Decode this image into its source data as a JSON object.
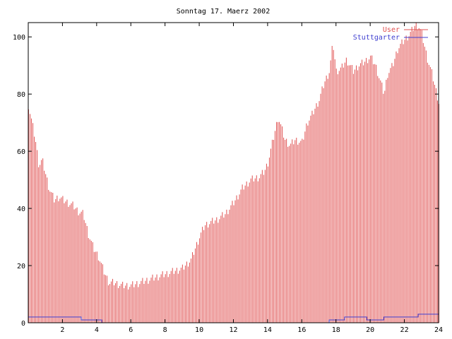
{
  "chart_data": {
    "type": "bar",
    "title": "Sonntag 17. Maerz 2002",
    "xlabel": "",
    "ylabel": "",
    "xlim": [
      0,
      24
    ],
    "ylim": [
      0,
      105
    ],
    "x_ticks": [
      2,
      4,
      6,
      8,
      10,
      12,
      14,
      16,
      18,
      20,
      22,
      24
    ],
    "y_ticks": [
      0,
      20,
      40,
      60,
      80,
      100
    ],
    "grid": false,
    "legend": "top-right",
    "colors": {
      "user": "#e05050",
      "stuttgarter": "#4040d0"
    },
    "series": [
      {
        "name": "User",
        "kind": "impulses",
        "step_hours": 0.0833,
        "anchors": [
          [
            0.0,
            76
          ],
          [
            0.2,
            70
          ],
          [
            0.4,
            64
          ],
          [
            0.6,
            55
          ],
          [
            0.8,
            57
          ],
          [
            1.0,
            52
          ],
          [
            1.2,
            47
          ],
          [
            1.5,
            43
          ],
          [
            1.8,
            44
          ],
          [
            2.0,
            43
          ],
          [
            2.3,
            42
          ],
          [
            2.6,
            41
          ],
          [
            2.9,
            39
          ],
          [
            3.2,
            38
          ],
          [
            3.5,
            31
          ],
          [
            3.8,
            26
          ],
          [
            4.1,
            23
          ],
          [
            4.4,
            18
          ],
          [
            4.7,
            14
          ],
          [
            5.0,
            14
          ],
          [
            5.5,
            13
          ],
          [
            6.0,
            13
          ],
          [
            6.5,
            14
          ],
          [
            7.0,
            15
          ],
          [
            7.5,
            16
          ],
          [
            8.0,
            17
          ],
          [
            8.5,
            18
          ],
          [
            9.0,
            19
          ],
          [
            9.5,
            22
          ],
          [
            10.0,
            30
          ],
          [
            10.3,
            34
          ],
          [
            10.6,
            35
          ],
          [
            11.0,
            36
          ],
          [
            11.5,
            38
          ],
          [
            12.0,
            42
          ],
          [
            12.5,
            47
          ],
          [
            13.0,
            50
          ],
          [
            13.5,
            51
          ],
          [
            13.8,
            53
          ],
          [
            14.0,
            56
          ],
          [
            14.3,
            64
          ],
          [
            14.6,
            72
          ],
          [
            14.8,
            68
          ],
          [
            15.0,
            64
          ],
          [
            15.3,
            62
          ],
          [
            15.6,
            64
          ],
          [
            16.0,
            63
          ],
          [
            16.3,
            70
          ],
          [
            16.6,
            73
          ],
          [
            17.0,
            78
          ],
          [
            17.3,
            84
          ],
          [
            17.6,
            88
          ],
          [
            17.8,
            98
          ],
          [
            18.0,
            88
          ],
          [
            18.3,
            89
          ],
          [
            18.6,
            92
          ],
          [
            19.0,
            88
          ],
          [
            19.3,
            90
          ],
          [
            19.6,
            91
          ],
          [
            20.0,
            93
          ],
          [
            20.3,
            90
          ],
          [
            20.6,
            84
          ],
          [
            20.8,
            80
          ],
          [
            21.0,
            87
          ],
          [
            21.3,
            90
          ],
          [
            21.6,
            96
          ],
          [
            22.0,
            99
          ],
          [
            22.3,
            101
          ],
          [
            22.6,
            104
          ],
          [
            22.8,
            104
          ],
          [
            23.0,
            101
          ],
          [
            23.3,
            93
          ],
          [
            23.6,
            87
          ],
          [
            23.8,
            82
          ],
          [
            24.0,
            77
          ]
        ]
      },
      {
        "name": "Stuttgarter",
        "kind": "steps",
        "segments": [
          [
            0.0,
            3.1,
            2
          ],
          [
            3.1,
            4.3,
            1
          ],
          [
            4.3,
            17.6,
            0
          ],
          [
            17.6,
            18.5,
            1
          ],
          [
            18.5,
            19.8,
            2
          ],
          [
            19.8,
            20.8,
            1
          ],
          [
            20.8,
            22.8,
            2
          ],
          [
            22.8,
            24.0,
            3
          ]
        ]
      }
    ]
  }
}
